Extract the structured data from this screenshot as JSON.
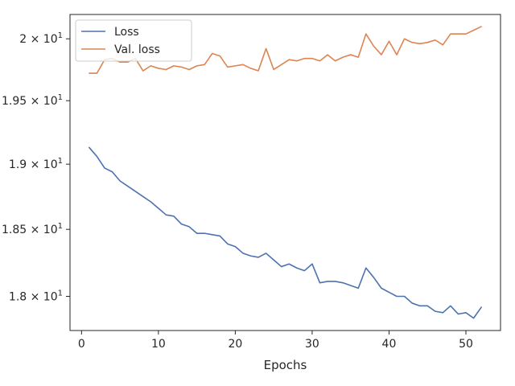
{
  "chart_data": {
    "type": "line",
    "xlabel": "Epochs",
    "ylabel": "",
    "y_scale": "log",
    "xlim": [
      -1.5,
      54.5
    ],
    "ylim": [
      17.75,
      20.2
    ],
    "x_ticks": [
      0,
      10,
      20,
      30,
      40,
      50
    ],
    "x_tick_labels": [
      "0",
      "10",
      "20",
      "30",
      "40",
      "50"
    ],
    "y_ticks": [
      18.0,
      18.5,
      19.0,
      19.5,
      20.0
    ],
    "y_tick_labels": [
      {
        "mantissa": "1.8",
        "times": "×",
        "base": "10",
        "exp": "1"
      },
      {
        "mantissa": "1.85",
        "times": "×",
        "base": "10",
        "exp": "1"
      },
      {
        "mantissa": "1.9",
        "times": "×",
        "base": "10",
        "exp": "1"
      },
      {
        "mantissa": "1.95",
        "times": "×",
        "base": "10",
        "exp": "1"
      },
      {
        "mantissa": "2",
        "times": "×",
        "base": "10",
        "exp": "1"
      }
    ],
    "grid": false,
    "legend_position": "top-left",
    "x": [
      1,
      2,
      3,
      4,
      5,
      6,
      7,
      8,
      9,
      10,
      11,
      12,
      13,
      14,
      15,
      16,
      17,
      18,
      19,
      20,
      21,
      22,
      23,
      24,
      25,
      26,
      27,
      28,
      29,
      30,
      31,
      32,
      33,
      34,
      35,
      36,
      37,
      38,
      39,
      40,
      41,
      42,
      43,
      44,
      45,
      46,
      47,
      48,
      49,
      50,
      51,
      52
    ],
    "series": [
      {
        "name": "Loss",
        "color": "#4c72b0",
        "values": [
          19.13,
          19.06,
          18.97,
          18.94,
          18.87,
          18.83,
          18.79,
          18.75,
          18.71,
          18.66,
          18.61,
          18.6,
          18.54,
          18.52,
          18.47,
          18.47,
          18.46,
          18.45,
          18.39,
          18.37,
          18.32,
          18.3,
          18.29,
          18.32,
          18.27,
          18.22,
          18.24,
          18.21,
          18.19,
          18.24,
          18.1,
          18.11,
          18.11,
          18.1,
          18.08,
          18.06,
          18.21,
          18.14,
          18.06,
          18.03,
          18.0,
          18.0,
          17.95,
          17.93,
          17.93,
          17.89,
          17.88,
          17.93,
          17.87,
          17.88,
          17.84,
          17.92
        ]
      },
      {
        "name": "Val. loss",
        "color": "#dd8452",
        "values": [
          19.72,
          19.72,
          19.83,
          19.84,
          19.81,
          19.81,
          19.84,
          19.74,
          19.78,
          19.76,
          19.75,
          19.78,
          19.77,
          19.75,
          19.78,
          19.79,
          19.88,
          19.86,
          19.77,
          19.78,
          19.79,
          19.76,
          19.74,
          19.92,
          19.75,
          19.79,
          19.83,
          19.82,
          19.84,
          19.84,
          19.82,
          19.87,
          19.82,
          19.85,
          19.87,
          19.85,
          20.04,
          19.94,
          19.87,
          19.98,
          19.87,
          20.0,
          19.97,
          19.96,
          19.97,
          19.99,
          19.95,
          20.04,
          20.04,
          20.04,
          20.07,
          20.1
        ]
      }
    ]
  }
}
